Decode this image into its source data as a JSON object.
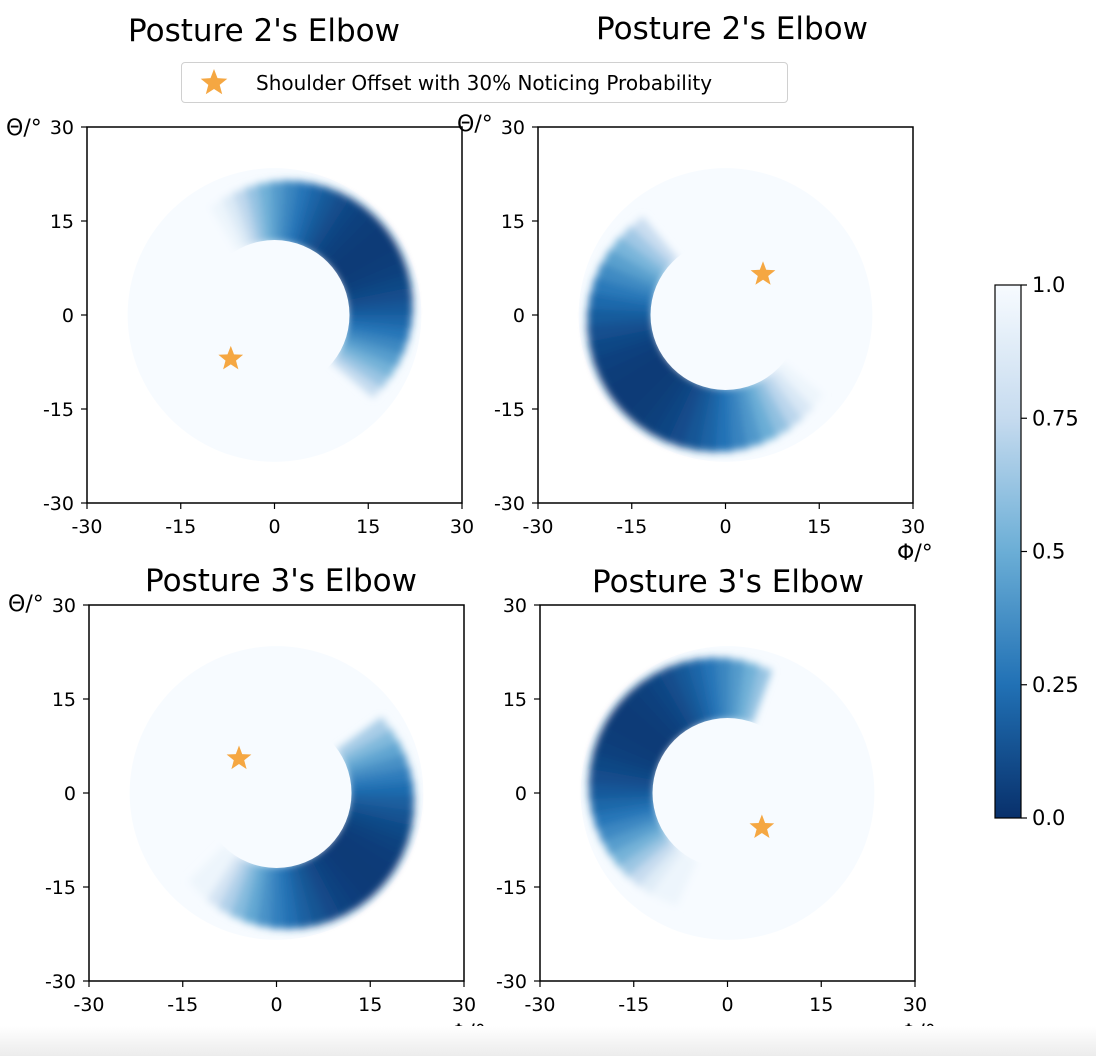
{
  "legend": {
    "label": "Shoulder Offset with 30% Noticing Probability",
    "marker_color": "#F5A742"
  },
  "colorbar": {
    "colormap": "Blues_r",
    "min": 0.0,
    "max": 1.0,
    "ticks": [
      "0.0",
      "0.25",
      "0.5",
      "0.75",
      "1.0"
    ]
  },
  "chart_data": [
    {
      "type": "heatmap",
      "title": "Posture 2's Elbow",
      "xlabel": "",
      "ylabel": "Θ/°",
      "xlim": [
        -30,
        30
      ],
      "ylim": [
        -30,
        30
      ],
      "xticks": [
        "-30",
        "-15",
        "0",
        "15",
        "30"
      ],
      "yticks": [
        "-30",
        "-15",
        "0",
        "15",
        "30"
      ],
      "annulus": {
        "inner_radius": 12,
        "outer_radius": 23.5
      },
      "low_region": {
        "from_deg": -40,
        "to_deg": 120,
        "peak_deg": 35
      },
      "star": {
        "x": -7,
        "y": -7
      }
    },
    {
      "type": "heatmap",
      "title": "Posture 2's Elbow",
      "xlabel": "Φ/°",
      "ylabel": "Θ/°",
      "xlim": [
        -30,
        30
      ],
      "ylim": [
        -30,
        30
      ],
      "xticks": [
        "-30",
        "-15",
        "0",
        "15",
        "30"
      ],
      "yticks": [
        "-30",
        "-15",
        "0",
        "15",
        "30"
      ],
      "annulus": {
        "inner_radius": 12,
        "outer_radius": 23.5
      },
      "low_region": {
        "from_deg": 130,
        "to_deg": 320,
        "peak_deg": 220
      },
      "star": {
        "x": 6,
        "y": 6.5
      }
    },
    {
      "type": "heatmap",
      "title": "Posture 3's Elbow",
      "xlabel": "Φ/°",
      "ylabel": "Θ/°",
      "xlim": [
        -30,
        30
      ],
      "ylim": [
        -30,
        30
      ],
      "xticks": [
        "-30",
        "-15",
        "0",
        "15",
        "30"
      ],
      "yticks": [
        "-30",
        "-15",
        "0",
        "15",
        "30"
      ],
      "annulus": {
        "inner_radius": 12,
        "outer_radius": 23.5
      },
      "low_region": {
        "from_deg": 225,
        "to_deg": 395,
        "peak_deg": 320
      },
      "star": {
        "x": -6,
        "y": 5.5
      }
    },
    {
      "type": "heatmap",
      "title": "Posture 3's Elbow",
      "xlabel": "Φ/°",
      "ylabel": "",
      "xlim": [
        -30,
        30
      ],
      "ylim": [
        -30,
        30
      ],
      "xticks": [
        "-30",
        "-15",
        "0",
        "15",
        "30"
      ],
      "yticks": [
        "-30",
        "-15",
        "0",
        "15",
        "30"
      ],
      "annulus": {
        "inner_radius": 12,
        "outer_radius": 23.5
      },
      "low_region": {
        "from_deg": 70,
        "to_deg": 245,
        "peak_deg": 145
      },
      "star": {
        "x": 5.5,
        "y": -5.5
      }
    }
  ]
}
